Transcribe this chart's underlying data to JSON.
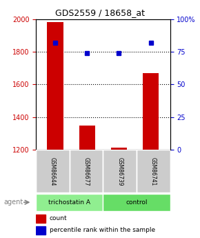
{
  "title": "GDS2559 / 18658_at",
  "samples": [
    "GSM86644",
    "GSM86677",
    "GSM86739",
    "GSM86741"
  ],
  "counts": [
    1980,
    1350,
    1215,
    1670
  ],
  "percentiles": [
    82,
    74,
    74,
    82
  ],
  "ymin": 1200,
  "ymax": 2000,
  "pct_min": 0,
  "pct_max": 100,
  "yticks_left": [
    1200,
    1400,
    1600,
    1800,
    2000
  ],
  "yticks_right": [
    0,
    25,
    50,
    75,
    100
  ],
  "ytick_labels_right": [
    "0",
    "25",
    "50",
    "75",
    "100%"
  ],
  "groups": [
    {
      "label": "trichostatin A",
      "samples": [
        0,
        1
      ],
      "color": "#90EE90"
    },
    {
      "label": "control",
      "samples": [
        2,
        3
      ],
      "color": "#66DD66"
    }
  ],
  "bar_color": "#CC0000",
  "dot_color": "#0000CC",
  "grid_color": "#000000",
  "label_color_left": "#CC0000",
  "label_color_right": "#0000CC",
  "legend_count_color": "#CC0000",
  "legend_pct_color": "#0000CC",
  "bg_plot": "#FFFFFF",
  "bg_sample_box": "#CCCCCC",
  "agent_label": "agent",
  "legend_count": "count",
  "legend_pct": "percentile rank within the sample"
}
